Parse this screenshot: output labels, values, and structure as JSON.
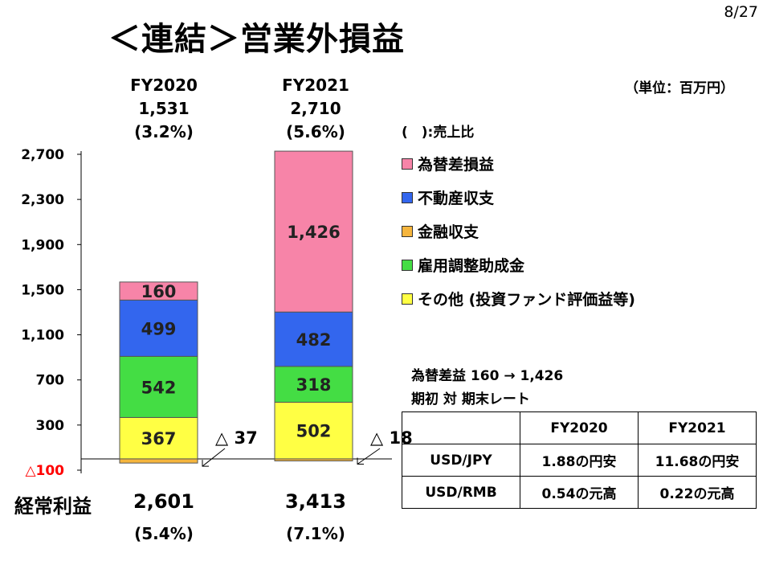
{
  "page_number": "8/27",
  "title": "＜連結＞営業外損益",
  "unit_note": "（単位：百万円）",
  "ratio_note": "(　):売上比",
  "periods": [
    {
      "label": "FY2020",
      "total": "1,531",
      "ratio": "(3.2%)"
    },
    {
      "label": "FY2021",
      "total": "2,710",
      "ratio": "(5.6%)"
    }
  ],
  "legend": [
    {
      "name": "為替差損益",
      "color": "#f784a8"
    },
    {
      "name": "不動産収支",
      "color": "#3366ee"
    },
    {
      "name": "金融収支",
      "color": "#f5b53d"
    },
    {
      "name": "雇用調整助成金",
      "color": "#44dd44"
    },
    {
      "name": "その他 (投資ファンド評価益等)",
      "color": "#ffff44"
    }
  ],
  "chart_data": {
    "type": "bar",
    "stacked": true,
    "categories": [
      "FY2020",
      "FY2021"
    ],
    "series": [
      {
        "name": "その他 (投資ファンド評価益等)",
        "values": [
          367,
          502
        ],
        "labels": [
          "367",
          "502"
        ],
        "color": "#ffff44"
      },
      {
        "name": "雇用調整助成金",
        "values": [
          542,
          318
        ],
        "labels": [
          "542",
          "318"
        ],
        "color": "#44dd44"
      },
      {
        "name": "不動産収支",
        "values": [
          499,
          482
        ],
        "labels": [
          "499",
          "482"
        ],
        "color": "#3366ee"
      },
      {
        "name": "為替差損益",
        "values": [
          160,
          1426
        ],
        "labels": [
          "160",
          "1,426"
        ],
        "color": "#f784a8"
      },
      {
        "name": "金融収支",
        "values": [
          -37,
          -18
        ],
        "labels": [
          "△ 37",
          "△ 18"
        ],
        "color": "#f5b53d"
      }
    ],
    "yticks": [
      {
        "value": 2700,
        "label": "2,700"
      },
      {
        "value": 2300,
        "label": "2,300"
      },
      {
        "value": 1900,
        "label": "1,900"
      },
      {
        "value": 1500,
        "label": "1,500"
      },
      {
        "value": 1100,
        "label": "1,100"
      },
      {
        "value": 700,
        "label": "700"
      },
      {
        "value": 300,
        "label": "300"
      },
      {
        "value": -100,
        "label": "△100",
        "color": "#ff0000"
      }
    ],
    "ylim": [
      -100,
      2700
    ]
  },
  "fx_note": {
    "line1": "為替差益 160 → 1,426",
    "line2": "期初 対 期末レート"
  },
  "fx_table": {
    "headers": [
      "",
      "FY2020",
      "FY2021"
    ],
    "rows": [
      [
        "USD/JPY",
        "1.88の円安",
        "11.68の円安"
      ],
      [
        "USD/RMB",
        "0.54の元高",
        "0.22の元高"
      ]
    ]
  },
  "ordinary_income": {
    "label": "経常利益",
    "values": [
      {
        "value": "2,601",
        "ratio": "(5.4%)"
      },
      {
        "value": "3,413",
        "ratio": "(7.1%)"
      }
    ]
  }
}
